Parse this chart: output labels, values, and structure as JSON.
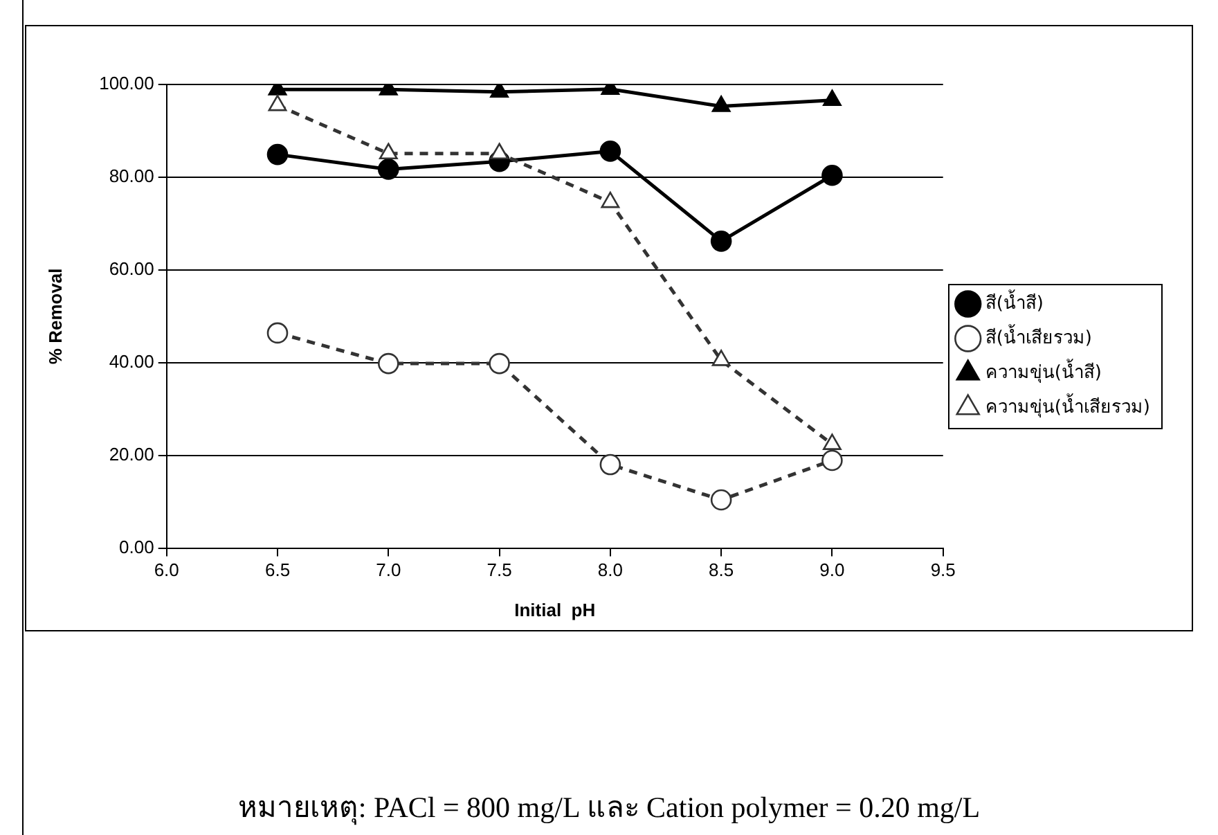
{
  "chart_data": {
    "type": "line",
    "xlabel": "Initial  pH",
    "ylabel": "% Removal",
    "x": [
      6.5,
      7.0,
      7.5,
      8.0,
      8.5,
      9.0
    ],
    "xlim": [
      6.0,
      9.5
    ],
    "xticks": [
      {
        "value": 6,
        "label": "6.0"
      },
      {
        "value": 6.5,
        "label": "6.5"
      },
      {
        "value": 7,
        "label": "7.0"
      },
      {
        "value": 7.5,
        "label": "7.5"
      },
      {
        "value": 8,
        "label": "8.0"
      },
      {
        "value": 8.5,
        "label": "8.5"
      },
      {
        "value": 9,
        "label": "9.0"
      },
      {
        "value": 9.5,
        "label": "9.5"
      }
    ],
    "ylim": [
      0,
      100
    ],
    "yticks": [
      {
        "value": 0,
        "label": "0.00"
      },
      {
        "value": 20,
        "label": "20.00"
      },
      {
        "value": 40,
        "label": "40.00"
      },
      {
        "value": 60,
        "label": "60.00"
      },
      {
        "value": 80,
        "label": "80.00"
      },
      {
        "value": 100,
        "label": "100.00"
      }
    ],
    "grid": "y",
    "legend": "right",
    "series": [
      {
        "name": "สี(น้ำสี)",
        "color": "#000000",
        "marker": "circle",
        "line_style": "solid",
        "values": [
          84.9,
          81.7,
          83.4,
          85.6,
          66.2,
          80.4
        ]
      },
      {
        "name": "สี(น้ำเสียรวม)",
        "color": "#333333",
        "marker": "circle",
        "line_style": "dashed",
        "values": [
          46.4,
          39.8,
          39.8,
          18.0,
          10.4,
          18.9
        ]
      },
      {
        "name": "ความขุ่น(น้ำสี)",
        "color": "#000000",
        "marker": "triangle",
        "line_style": "solid",
        "values": [
          98.9,
          98.9,
          98.4,
          99.0,
          95.3,
          96.6
        ]
      },
      {
        "name": "ความขุ่น(น้ำเสียรวม)",
        "color": "#333333",
        "marker": "triangle",
        "line_style": "dashed",
        "values": [
          95.5,
          85.1,
          85.1,
          74.6,
          40.5,
          22.4
        ]
      }
    ],
    "annotations": [
      "หมายเหตุ: PACl = 800 mg/L และ Cation polymer = 0.20 mg/L"
    ]
  }
}
